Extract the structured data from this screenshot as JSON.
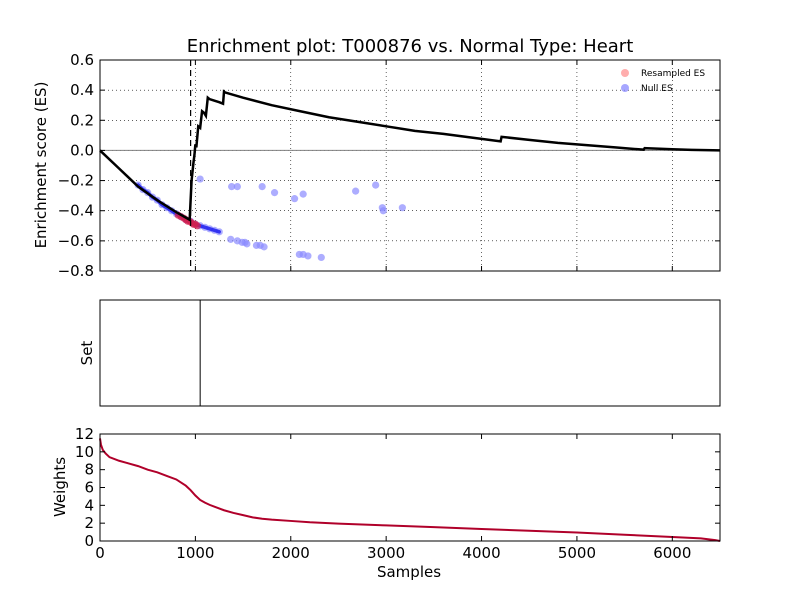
{
  "chart_data": [
    {
      "type": "line",
      "title": "Enrichment plot: T000876 vs. Normal Type: Heart",
      "xlabel": "",
      "ylabel": "Enrichment score (ES)",
      "xlim": [
        0,
        6500
      ],
      "ylim": [
        -0.8,
        0.6
      ],
      "x_ticks": [
        0,
        1000,
        2000,
        3000,
        4000,
        5000,
        6000
      ],
      "y_ticks": [
        -0.8,
        -0.6,
        -0.4,
        -0.2,
        0.0,
        0.2,
        0.4,
        0.6
      ],
      "y_tick_labels": [
        "−0.8",
        "−0.6",
        "−0.4",
        "−0.2",
        "0.0",
        "0.2",
        "0.4",
        "0.6"
      ],
      "grid": true,
      "legend": {
        "placement": "top-right",
        "entries": [
          "Resampled ES",
          "Null ES"
        ]
      },
      "colors": {
        "es_line": "#000000",
        "resampled": "#ff9f9f",
        "null": "#8a8aff",
        "zero_line": "#808080"
      },
      "dashed_vline_x": 950,
      "es_curve": {
        "x": [
          0,
          200,
          400,
          600,
          800,
          940,
          950,
          960,
          980,
          990,
          1000,
          1010,
          1030,
          1050,
          1070,
          1090,
          1110,
          1130,
          1150,
          1200,
          1250,
          1290,
          1300,
          1310,
          1500,
          1800,
          2100,
          2400,
          2700,
          3000,
          3300,
          3600,
          3900,
          4200,
          4210,
          4500,
          4800,
          5100,
          5400,
          5700,
          5710,
          6000,
          6200,
          6500
        ],
        "y": [
          0.0,
          -0.12,
          -0.24,
          -0.33,
          -0.41,
          -0.46,
          -0.33,
          -0.2,
          -0.08,
          -0.03,
          0.04,
          0.02,
          0.16,
          0.15,
          0.26,
          0.25,
          0.23,
          0.35,
          0.34,
          0.33,
          0.32,
          0.31,
          0.39,
          0.385,
          0.35,
          0.3,
          0.26,
          0.22,
          0.19,
          0.16,
          0.13,
          0.11,
          0.085,
          0.06,
          0.09,
          0.07,
          0.05,
          0.035,
          0.02,
          0.005,
          0.015,
          0.008,
          0.004,
          0.0
        ]
      },
      "resampled_es": {
        "x": [
          820,
          850,
          880,
          900,
          920,
          940,
          960,
          980,
          1000,
          1020
        ],
        "y": [
          -0.43,
          -0.44,
          -0.45,
          -0.46,
          -0.47,
          -0.47,
          -0.48,
          -0.49,
          -0.49,
          -0.5
        ]
      },
      "null_es": {
        "x": [
          400,
          450,
          500,
          550,
          600,
          650,
          700,
          750,
          800,
          850,
          900,
          950,
          1000,
          1050,
          1100,
          1150,
          1200,
          1250,
          1050,
          1380,
          1440,
          1700,
          1830,
          2040,
          2130,
          2680,
          2890,
          2960,
          2970,
          3170,
          1370,
          1440,
          1490,
          1520,
          1540,
          1640,
          1680,
          1720,
          2090,
          2130,
          2180,
          2320
        ],
        "y": [
          -0.23,
          -0.26,
          -0.28,
          -0.31,
          -0.33,
          -0.36,
          -0.38,
          -0.4,
          -0.42,
          -0.44,
          -0.46,
          -0.47,
          -0.49,
          -0.5,
          -0.51,
          -0.52,
          -0.53,
          -0.54,
          -0.19,
          -0.24,
          -0.24,
          -0.24,
          -0.28,
          -0.32,
          -0.29,
          -0.27,
          -0.23,
          -0.38,
          -0.4,
          -0.38,
          -0.59,
          -0.6,
          -0.61,
          -0.61,
          -0.62,
          -0.63,
          -0.63,
          -0.64,
          -0.69,
          -0.69,
          -0.7,
          -0.71
        ]
      }
    },
    {
      "type": "line",
      "title": "",
      "xlabel": "",
      "ylabel": "Set",
      "xlim": [
        0,
        6500
      ],
      "hits_x": [
        1050
      ]
    },
    {
      "type": "area",
      "title": "",
      "xlabel": "Samples",
      "ylabel": "Weights",
      "xlim": [
        0,
        6500
      ],
      "ylim": [
        0,
        12
      ],
      "x_ticks": [
        0,
        1000,
        2000,
        3000,
        4000,
        5000,
        6000
      ],
      "y_ticks": [
        0,
        2,
        4,
        6,
        8,
        10,
        12
      ],
      "colors": {
        "curve": "#b0002a"
      },
      "series": [
        {
          "x": [
            0,
            10,
            30,
            60,
            100,
            200,
            300,
            400,
            500,
            600,
            700,
            800,
            900,
            950,
            1000,
            1050,
            1100,
            1150,
            1200,
            1300,
            1400,
            1500,
            1600,
            1700,
            1800,
            2000,
            2200,
            2500,
            3000,
            3500,
            4000,
            4500,
            5000,
            5500,
            6000,
            6300,
            6450,
            6500
          ],
          "y": [
            11.5,
            10.8,
            10.2,
            9.8,
            9.4,
            9.0,
            8.7,
            8.4,
            8.0,
            7.7,
            7.3,
            6.9,
            6.2,
            5.7,
            5.1,
            4.6,
            4.3,
            4.05,
            3.85,
            3.45,
            3.15,
            2.9,
            2.65,
            2.5,
            2.4,
            2.25,
            2.1,
            1.95,
            1.75,
            1.55,
            1.35,
            1.15,
            0.95,
            0.7,
            0.45,
            0.3,
            0.1,
            0.0
          ]
        }
      ]
    }
  ]
}
